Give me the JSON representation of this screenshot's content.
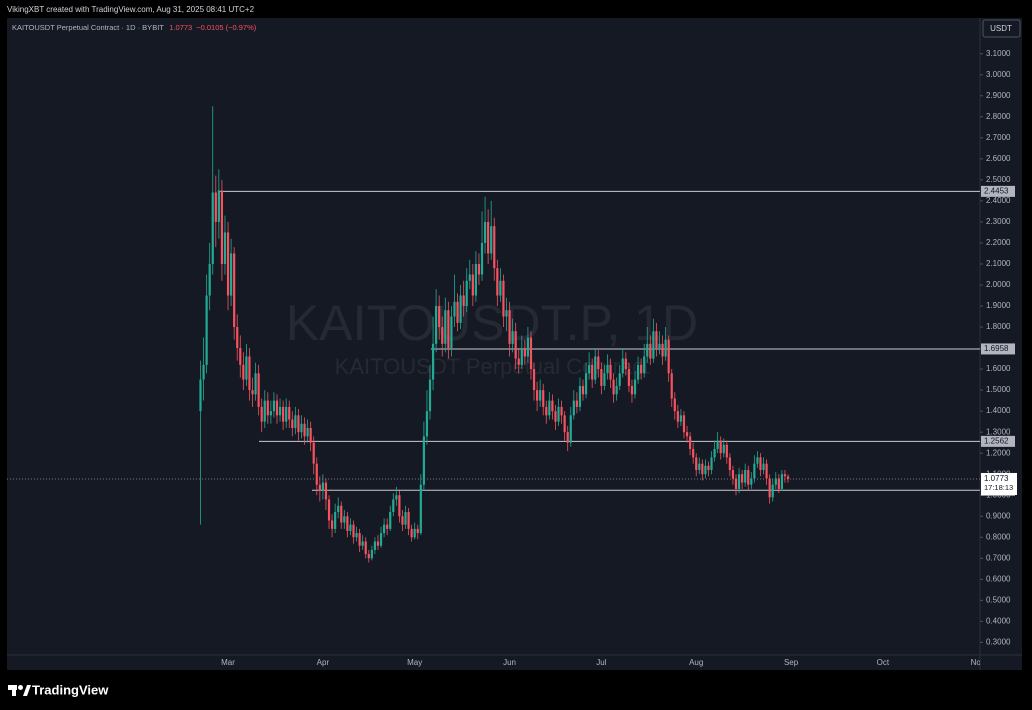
{
  "header": {
    "author_line": "VikingXBT created with TradingView.com, Aug 31, 2025 08:41 UTC+2",
    "symbol_line": "KAITOUSDT Perpetual Contract · 1D · BYBIT",
    "last_price": 1.0773,
    "change": "−0.0105 (−0.97%)"
  },
  "watermark": {
    "ticker": "KAITOUSDT.P, 1D",
    "description": "KAITOUSDT Perpetual Contract"
  },
  "footer": {
    "brand": "TradingView"
  },
  "chart_data": {
    "type": "candlestick",
    "currency": "USDT",
    "up_color": "#22ab94",
    "down_color": "#f7525f",
    "ylim": [
      0.24,
      3.27
    ],
    "yticks": [
      {
        "value": 0.3,
        "label": "0.3000"
      },
      {
        "value": 0.4,
        "label": "0.4000"
      },
      {
        "value": 0.5,
        "label": "0.5000"
      },
      {
        "value": 0.6,
        "label": "0.6000"
      },
      {
        "value": 0.7,
        "label": "0.7000"
      },
      {
        "value": 0.8,
        "label": "0.8000"
      },
      {
        "value": 0.9,
        "label": "0.9000"
      },
      {
        "value": 1.0,
        "label": "1.0000"
      },
      {
        "value": 1.1,
        "label": "1.1000"
      },
      {
        "value": 1.2,
        "label": "1.2000"
      },
      {
        "value": 1.3,
        "label": "1.3000"
      },
      {
        "value": 1.4,
        "label": "1.4000"
      },
      {
        "value": 1.5,
        "label": "1.5000"
      },
      {
        "value": 1.6,
        "label": "1.6000"
      },
      {
        "value": 1.7,
        "label": "1.7000"
      },
      {
        "value": 1.8,
        "label": "1.8000"
      },
      {
        "value": 1.9,
        "label": "1.9000"
      },
      {
        "value": 2.0,
        "label": "2.0000"
      },
      {
        "value": 2.1,
        "label": "2.1000"
      },
      {
        "value": 2.2,
        "label": "2.2000"
      },
      {
        "value": 2.3,
        "label": "2.3000"
      },
      {
        "value": 2.4,
        "label": "2.4000"
      },
      {
        "value": 2.5,
        "label": "2.5000"
      },
      {
        "value": 2.6,
        "label": "2.6000"
      },
      {
        "value": 2.7,
        "label": "2.7000"
      },
      {
        "value": 2.8,
        "label": "2.8000"
      },
      {
        "value": 2.9,
        "label": "2.9000"
      },
      {
        "value": 3.0,
        "label": "3.0000"
      },
      {
        "value": 3.1,
        "label": "3.1000"
      }
    ],
    "levels": [
      2.4453,
      1.6958,
      1.2562,
      1.0235
    ],
    "current_price": 1.0773,
    "countdown": "17:18:13",
    "categories": [
      null,
      null,
      null,
      null,
      null,
      null,
      null,
      null,
      null,
      "Mar",
      null,
      null,
      null,
      null,
      null,
      null,
      null,
      null,
      null,
      null,
      null,
      null,
      null,
      null,
      null,
      null,
      null,
      null,
      null,
      null,
      null,
      null,
      null,
      null,
      null,
      null,
      null,
      null,
      null,
      null,
      "Apr",
      null,
      null,
      null,
      null,
      null,
      null,
      null,
      null,
      null,
      null,
      null,
      null,
      null,
      null,
      null,
      null,
      null,
      null,
      null,
      null,
      null,
      null,
      null,
      null,
      null,
      null,
      null,
      null,
      null,
      "May",
      null,
      null,
      null,
      null,
      null,
      null,
      null,
      null,
      null,
      null,
      null,
      null,
      null,
      null,
      null,
      null,
      null,
      null,
      null,
      null,
      null,
      null,
      null,
      null,
      null,
      null,
      null,
      null,
      null,
      null,
      "Jun",
      null,
      null,
      null,
      null,
      null,
      null,
      null,
      null,
      null,
      null,
      null,
      null,
      null,
      null,
      null,
      null,
      null,
      null,
      null,
      null,
      null,
      null,
      null,
      null,
      null,
      null,
      null,
      null,
      null,
      "Jul",
      null,
      null,
      null,
      null,
      null,
      null,
      null,
      null,
      null,
      null,
      null,
      null,
      null,
      null,
      null,
      null,
      null,
      null,
      null,
      null,
      null,
      null,
      null,
      null,
      null,
      null,
      null,
      null,
      null,
      null,
      "Aug",
      null,
      null,
      null,
      null,
      null,
      null,
      null,
      null,
      null,
      null,
      null,
      null,
      null,
      null,
      null,
      null,
      null,
      null,
      null,
      null,
      null,
      null,
      null,
      null,
      null,
      null,
      null,
      null,
      null,
      null,
      "Sep",
      null,
      null,
      null,
      null,
      null,
      null,
      null,
      null,
      null,
      null,
      null,
      null,
      null,
      null,
      null,
      null,
      null,
      null,
      null,
      null,
      null,
      null,
      null,
      null,
      null,
      null,
      null,
      null,
      null,
      "Oct",
      null,
      null,
      null,
      null,
      null,
      null,
      null,
      null,
      null,
      null,
      null,
      null,
      null,
      null,
      null,
      null,
      null,
      null,
      null,
      null,
      null,
      null,
      null,
      null,
      null,
      null,
      null,
      null,
      null,
      null,
      "Nov"
    ],
    "open": [
      1.4,
      1.55,
      1.62,
      1.95,
      2.1,
      2.44,
      2.3,
      2.45,
      2.1,
      2.25,
      1.95,
      2.15,
      1.8,
      1.7,
      1.62,
      1.55,
      1.66,
      1.5,
      1.48,
      1.58,
      1.42,
      1.35,
      1.45,
      1.38,
      1.4,
      1.45,
      1.38,
      1.42,
      1.35,
      1.42,
      1.36,
      1.32,
      1.38,
      1.3,
      1.34,
      1.28,
      1.32,
      1.25,
      1.15,
      1.05,
      1.02,
      1.06,
      0.98,
      0.88,
      0.84,
      0.92,
      0.95,
      0.87,
      0.9,
      0.83,
      0.86,
      0.8,
      0.82,
      0.76,
      0.78,
      0.72,
      0.7,
      0.74,
      0.78,
      0.76,
      0.82,
      0.86,
      0.84,
      0.92,
      0.98,
      1.0,
      0.9,
      0.86,
      0.92,
      0.84,
      0.8,
      0.84,
      0.82,
      1.05,
      1.28,
      1.4,
      1.55,
      1.72,
      1.9,
      1.8,
      1.72,
      1.88,
      1.7,
      1.85,
      1.92,
      1.82,
      1.95,
      1.9,
      2.02,
      2.05,
      1.95,
      2.1,
      2.05,
      2.2,
      2.3,
      2.15,
      2.28,
      2.08,
      1.95,
      2.02,
      1.85,
      1.88,
      1.72,
      1.78,
      1.65,
      1.62,
      1.7,
      1.66,
      1.75,
      1.6,
      1.5,
      1.45,
      1.5,
      1.42,
      1.38,
      1.45,
      1.4,
      1.35,
      1.42,
      1.38,
      1.3,
      1.25,
      1.38,
      1.45,
      1.42,
      1.52,
      1.48,
      1.58,
      1.62,
      1.55,
      1.66,
      1.6,
      1.52,
      1.58,
      1.62,
      1.55,
      1.48,
      1.52,
      1.58,
      1.65,
      1.6,
      1.52,
      1.48,
      1.55,
      1.62,
      1.58,
      1.66,
      1.72,
      1.65,
      1.78,
      1.7,
      1.72,
      1.66,
      1.74,
      1.58,
      1.46,
      1.4,
      1.35,
      1.38,
      1.3,
      1.28,
      1.22,
      1.18,
      1.12,
      1.15,
      1.1,
      1.14,
      1.12,
      1.18,
      1.22,
      1.26,
      1.2,
      1.24,
      1.18,
      1.12,
      1.08,
      1.03,
      1.1,
      1.06,
      1.12,
      1.05,
      1.08,
      1.15,
      1.18,
      1.12,
      1.15,
      1.08,
      0.99,
      1.05,
      1.08,
      1.03,
      1.1,
      1.09,
      null,
      null,
      null,
      null,
      null,
      null,
      null,
      null,
      null,
      null,
      null,
      null,
      null,
      null,
      null,
      null,
      null,
      null,
      null,
      null,
      null,
      null,
      null,
      null,
      null,
      null,
      null,
      null,
      null,
      null,
      null,
      null,
      null,
      null,
      null,
      null,
      null,
      null,
      null,
      null,
      null,
      null,
      null,
      null,
      null,
      null,
      null,
      null,
      null,
      null,
      null,
      null,
      null,
      null,
      null,
      null,
      null,
      null,
      null,
      null,
      null,
      null
    ],
    "high": [
      1.64,
      1.75,
      2.05,
      2.2,
      2.85,
      2.52,
      2.55,
      2.5,
      2.33,
      2.3,
      2.22,
      2.18,
      1.86,
      1.76,
      1.68,
      1.72,
      1.7,
      1.56,
      1.63,
      1.62,
      1.46,
      1.5,
      1.49,
      1.45,
      1.49,
      1.48,
      1.46,
      1.45,
      1.46,
      1.45,
      1.4,
      1.42,
      1.41,
      1.38,
      1.37,
      1.36,
      1.35,
      1.28,
      1.18,
      1.09,
      1.1,
      1.08,
      1.0,
      0.91,
      0.96,
      0.99,
      0.97,
      0.93,
      0.92,
      0.89,
      0.88,
      0.85,
      0.84,
      0.81,
      0.8,
      0.74,
      0.76,
      0.8,
      0.81,
      0.85,
      0.89,
      0.89,
      0.95,
      1.01,
      1.04,
      1.02,
      0.93,
      0.95,
      0.94,
      0.86,
      0.87,
      0.86,
      1.1,
      1.35,
      1.5,
      1.62,
      1.85,
      1.98,
      1.95,
      1.85,
      1.94,
      1.92,
      1.9,
      2.05,
      1.96,
      2.0,
      2.02,
      2.08,
      2.12,
      2.1,
      2.16,
      2.15,
      2.35,
      2.42,
      2.36,
      2.4,
      2.32,
      2.12,
      2.08,
      2.05,
      1.94,
      1.92,
      1.84,
      1.82,
      1.7,
      1.76,
      1.74,
      1.8,
      1.78,
      1.63,
      1.54,
      1.55,
      1.53,
      1.45,
      1.49,
      1.48,
      1.43,
      1.46,
      1.45,
      1.4,
      1.33,
      1.42,
      1.5,
      1.49,
      1.56,
      1.55,
      1.63,
      1.68,
      1.65,
      1.7,
      1.69,
      1.63,
      1.62,
      1.67,
      1.65,
      1.58,
      1.56,
      1.62,
      1.7,
      1.68,
      1.63,
      1.55,
      1.59,
      1.66,
      1.65,
      1.72,
      1.8,
      1.76,
      1.84,
      1.82,
      1.78,
      1.76,
      1.8,
      1.76,
      1.6,
      1.49,
      1.43,
      1.41,
      1.4,
      1.33,
      1.3,
      1.25,
      1.2,
      1.18,
      1.17,
      1.17,
      1.16,
      1.21,
      1.26,
      1.3,
      1.28,
      1.27,
      1.26,
      1.2,
      1.14,
      1.1,
      1.13,
      1.12,
      1.15,
      1.14,
      1.11,
      1.19,
      1.21,
      1.2,
      1.18,
      1.17,
      1.1,
      1.08,
      1.11,
      1.1,
      1.12,
      1.12,
      1.1,
      null,
      null,
      null,
      null,
      null,
      null,
      null,
      null,
      null,
      null,
      null,
      null,
      null,
      null,
      null,
      null,
      null,
      null,
      null,
      null,
      null,
      null,
      null,
      null,
      null,
      null,
      null,
      null,
      null,
      null,
      null,
      null,
      null,
      null,
      null,
      null,
      null,
      null,
      null,
      null,
      null,
      null,
      null,
      null,
      null,
      null,
      null,
      null,
      null,
      null,
      null,
      null,
      null,
      null,
      null,
      null,
      null,
      null,
      null,
      null,
      null,
      null
    ],
    "low": [
      0.86,
      1.45,
      1.58,
      1.88,
      2.05,
      2.18,
      2.22,
      2.02,
      2.05,
      1.88,
      1.9,
      1.74,
      1.64,
      1.56,
      1.5,
      1.52,
      1.45,
      1.42,
      1.45,
      1.38,
      1.3,
      1.32,
      1.34,
      1.34,
      1.37,
      1.34,
      1.35,
      1.31,
      1.32,
      1.32,
      1.28,
      1.29,
      1.26,
      1.27,
      1.24,
      1.25,
      1.21,
      1.1,
      1.0,
      0.97,
      0.98,
      0.93,
      0.84,
      0.8,
      0.82,
      0.89,
      0.84,
      0.84,
      0.8,
      0.81,
      0.77,
      0.78,
      0.73,
      0.74,
      0.7,
      0.68,
      0.69,
      0.72,
      0.74,
      0.75,
      0.8,
      0.81,
      0.83,
      0.9,
      0.95,
      0.87,
      0.83,
      0.84,
      0.81,
      0.78,
      0.79,
      0.79,
      0.81,
      1.02,
      1.24,
      1.36,
      1.5,
      1.68,
      1.74,
      1.66,
      1.68,
      1.65,
      1.66,
      1.8,
      1.78,
      1.79,
      1.85,
      1.87,
      1.98,
      1.9,
      1.92,
      2.0,
      2.02,
      2.15,
      2.1,
      2.12,
      2.02,
      1.9,
      1.92,
      1.8,
      1.78,
      1.66,
      1.68,
      1.6,
      1.58,
      1.6,
      1.62,
      1.63,
      1.55,
      1.45,
      1.4,
      1.42,
      1.38,
      1.34,
      1.36,
      1.36,
      1.31,
      1.33,
      1.34,
      1.26,
      1.21,
      1.23,
      1.36,
      1.39,
      1.4,
      1.45,
      1.46,
      1.55,
      1.51,
      1.53,
      1.56,
      1.48,
      1.5,
      1.55,
      1.51,
      1.44,
      1.45,
      1.5,
      1.56,
      1.57,
      1.49,
      1.44,
      1.46,
      1.53,
      1.55,
      1.56,
      1.63,
      1.62,
      1.63,
      1.66,
      1.67,
      1.62,
      1.64,
      1.54,
      1.42,
      1.36,
      1.32,
      1.33,
      1.27,
      1.25,
      1.19,
      1.15,
      1.09,
      1.1,
      1.07,
      1.08,
      1.09,
      1.1,
      1.16,
      1.2,
      1.17,
      1.18,
      1.15,
      1.09,
      1.05,
      1.0,
      1.01,
      1.03,
      1.04,
      1.02,
      1.03,
      1.06,
      1.13,
      1.09,
      1.1,
      1.05,
      0.96,
      0.97,
      1.03,
      1.01,
      1.02,
      1.06,
      1.06,
      null,
      null,
      null,
      null,
      null,
      null,
      null,
      null,
      null,
      null,
      null,
      null,
      null,
      null,
      null,
      null,
      null,
      null,
      null,
      null,
      null,
      null,
      null,
      null,
      null,
      null,
      null,
      null,
      null,
      null,
      null,
      null,
      null,
      null,
      null,
      null,
      null,
      null,
      null,
      null,
      null,
      null,
      null,
      null,
      null,
      null,
      null,
      null,
      null,
      null,
      null,
      null,
      null,
      null,
      null,
      null,
      null,
      null,
      null,
      null,
      null,
      null
    ],
    "close": [
      1.55,
      1.62,
      1.95,
      2.1,
      2.44,
      2.3,
      2.45,
      2.1,
      2.25,
      1.95,
      2.15,
      1.8,
      1.7,
      1.62,
      1.55,
      1.66,
      1.5,
      1.48,
      1.58,
      1.42,
      1.35,
      1.45,
      1.38,
      1.4,
      1.45,
      1.38,
      1.42,
      1.35,
      1.42,
      1.36,
      1.32,
      1.38,
      1.3,
      1.34,
      1.28,
      1.32,
      1.25,
      1.15,
      1.05,
      1.02,
      1.06,
      0.98,
      0.88,
      0.84,
      0.92,
      0.95,
      0.87,
      0.9,
      0.83,
      0.86,
      0.8,
      0.82,
      0.76,
      0.78,
      0.72,
      0.7,
      0.74,
      0.78,
      0.76,
      0.82,
      0.86,
      0.84,
      0.92,
      0.98,
      1.0,
      0.9,
      0.86,
      0.92,
      0.84,
      0.8,
      0.84,
      0.82,
      1.05,
      1.28,
      1.4,
      1.55,
      1.72,
      1.9,
      1.8,
      1.72,
      1.88,
      1.7,
      1.85,
      1.92,
      1.82,
      1.95,
      1.9,
      2.02,
      2.05,
      1.95,
      2.1,
      2.05,
      2.2,
      2.3,
      2.15,
      2.28,
      2.08,
      1.95,
      2.02,
      1.85,
      1.88,
      1.72,
      1.78,
      1.65,
      1.62,
      1.7,
      1.66,
      1.75,
      1.6,
      1.5,
      1.45,
      1.5,
      1.42,
      1.38,
      1.45,
      1.4,
      1.35,
      1.42,
      1.38,
      1.3,
      1.25,
      1.38,
      1.45,
      1.42,
      1.52,
      1.48,
      1.58,
      1.62,
      1.55,
      1.66,
      1.6,
      1.52,
      1.58,
      1.62,
      1.55,
      1.48,
      1.52,
      1.58,
      1.65,
      1.6,
      1.52,
      1.48,
      1.55,
      1.62,
      1.58,
      1.66,
      1.72,
      1.65,
      1.78,
      1.7,
      1.72,
      1.66,
      1.74,
      1.58,
      1.46,
      1.4,
      1.35,
      1.38,
      1.3,
      1.28,
      1.22,
      1.18,
      1.12,
      1.15,
      1.1,
      1.14,
      1.12,
      1.18,
      1.22,
      1.26,
      1.2,
      1.24,
      1.18,
      1.12,
      1.08,
      1.03,
      1.1,
      1.06,
      1.12,
      1.05,
      1.08,
      1.15,
      1.18,
      1.12,
      1.15,
      1.08,
      0.99,
      1.05,
      1.08,
      1.03,
      1.1,
      1.09,
      1.0773,
      null,
      null,
      null,
      null,
      null,
      null,
      null,
      null,
      null,
      null,
      null,
      null,
      null,
      null,
      null,
      null,
      null,
      null,
      null,
      null,
      null,
      null,
      null,
      null,
      null,
      null,
      null,
      null,
      null,
      null,
      null,
      null,
      null,
      null,
      null,
      null,
      null,
      null,
      null,
      null,
      null,
      null,
      null,
      null,
      null,
      null,
      null,
      null,
      null,
      null,
      null,
      null,
      null,
      null,
      null,
      null,
      null,
      null,
      null,
      null,
      null,
      null
    ]
  }
}
